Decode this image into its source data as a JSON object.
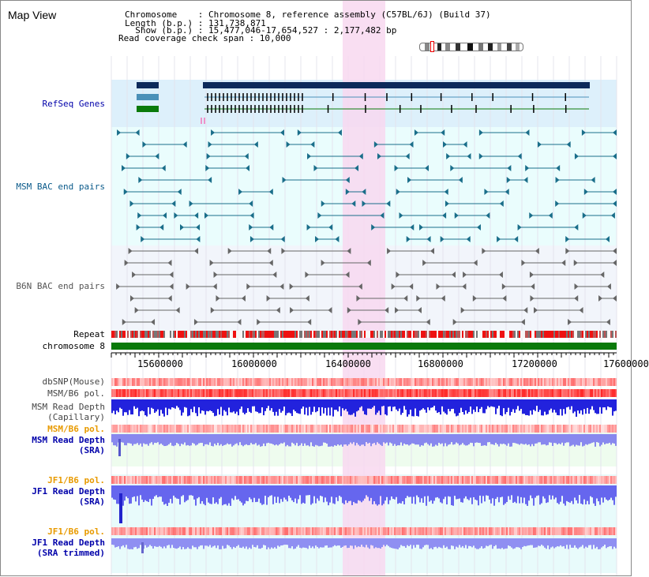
{
  "map_title": "Map View",
  "info": {
    "chromosome": "Chromosome    : Chromosome 8, reference assembly (C57BL/6J) (Build 37)",
    "length": "Length (b.p.) : 131,738,871",
    "show": "  Show (b.p.) : 15,477,046-17,654,527 : 2,177,482 bp",
    "coverage": "Read coverage check span : 10,000"
  },
  "tracks": {
    "refseq_genes": "RefSeq Genes",
    "msm_bac": "MSM BAC end pairs",
    "b6n_bac": "B6N BAC end pairs",
    "repeat": "Repeat",
    "chromosome": "chromosome 8",
    "dbsnp": "dbSNP(Mouse)",
    "msm_pol": "MSM/B6 pol.",
    "msm_depth_cap_1": "MSM Read Depth",
    "msm_depth_cap_2": "(Capillary)",
    "msm_pol_2": "MSM/B6 pol.",
    "msm_depth_sra_1": "MSM Read Depth",
    "msm_depth_sra_2": "(SRA)",
    "jf1_pol": "JF1/B6 pol.",
    "jf1_depth_sra_1": "JF1 Read Depth",
    "jf1_depth_sra_2": "(SRA)",
    "jf1_pol_2": "JF1/B6 pol.",
    "jf1_depth_trim_1": "JF1 Read Depth",
    "jf1_depth_trim_2": "(SRA trimmed)"
  },
  "axis": {
    "ticks": [
      "15600000",
      "16000000",
      "16400000",
      "16800000",
      "17200000",
      "17600000"
    ]
  },
  "colors": {
    "refseq_bg": "#ddf0fb",
    "bac_bg": "#eafdfd",
    "highlight": "#f8d8f0",
    "gene_navy": "#0d2a5a",
    "gene_teal": "#4a90b8",
    "gene_green": "#0a7a0a",
    "chromosome_bar": "#0a7a0a",
    "msm_label": "#0a5a8a",
    "depth_label": "#0000aa",
    "pol_label": "#e89a00"
  }
}
